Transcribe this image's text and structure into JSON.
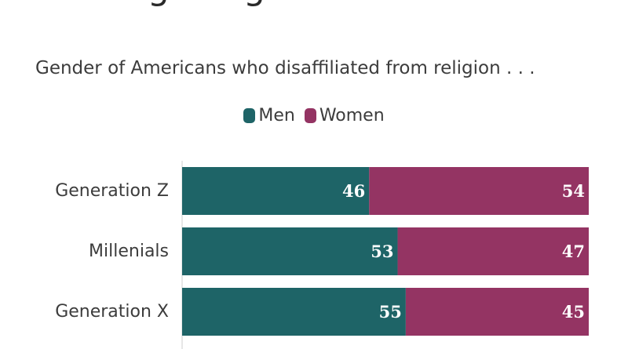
{
  "title": "Leaving Religion",
  "subtitle": "Gender of Americans who disaffiliated from religion . . .",
  "colors": {
    "men": "#1e6467",
    "women": "#943463"
  },
  "chart_data": {
    "type": "bar",
    "orientation": "horizontal",
    "stacked": true,
    "title": "Leaving Religion",
    "subtitle": "Gender of Americans who disaffiliated from religion . . .",
    "categories": [
      "Generation Z",
      "Millenials",
      "Generation X"
    ],
    "series": [
      {
        "name": "Men",
        "values": [
          46,
          53,
          55
        ]
      },
      {
        "name": "Women",
        "values": [
          54,
          47,
          45
        ]
      }
    ],
    "xlim": [
      0,
      100
    ],
    "legend_position": "top-center",
    "grid": false
  }
}
